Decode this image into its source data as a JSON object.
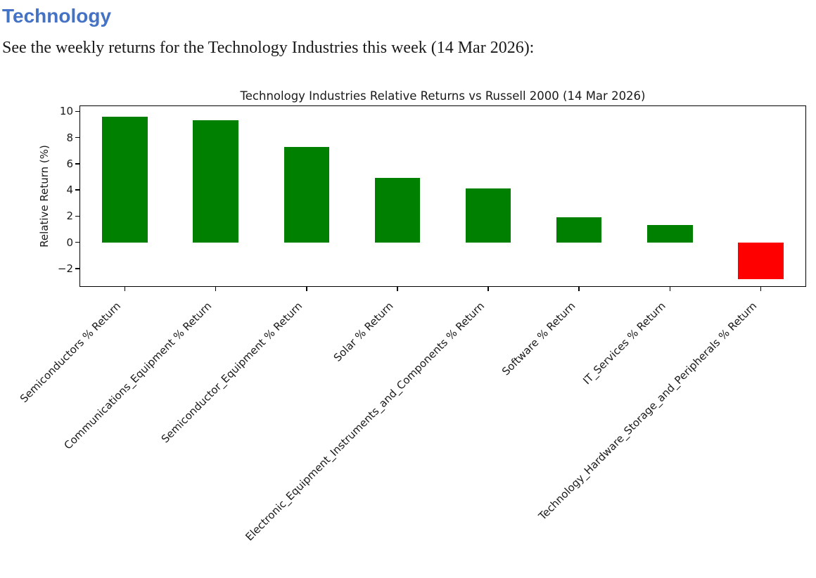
{
  "document": {
    "heading": "Technology",
    "heading_color": "#4472C4",
    "intro": "See the weekly returns for the Technology Industries this week (14 Mar 2026):"
  },
  "chart_data": {
    "type": "bar",
    "title": "Technology Industries Relative Returns vs Russell 2000 (14 Mar 2026)",
    "xlabel": "",
    "ylabel": "Relative Return (%)",
    "categories": [
      "Semiconductors % Return",
      "Communications_Equipment % Return",
      "Semiconductor_Equipment % Return",
      "Solar % Return",
      "Electronic_Equipment_Instruments_and_Components % Return",
      "Software % Return",
      "IT_Services % Return",
      "Technology_Hardware_Storage_and_Peripherals % Return"
    ],
    "values": [
      9.6,
      9.3,
      7.3,
      4.9,
      4.1,
      1.9,
      1.3,
      -2.8
    ],
    "positive_color": "#008000",
    "negative_color": "#ff0000",
    "yticks": [
      10,
      8,
      6,
      4,
      2,
      0,
      -2
    ],
    "ylim": [
      -3.4,
      10.45
    ],
    "xlim": [
      -0.5,
      7.5
    ],
    "bar_width": 0.5,
    "xtick_rotation": 45,
    "grid": false,
    "legend": null
  }
}
